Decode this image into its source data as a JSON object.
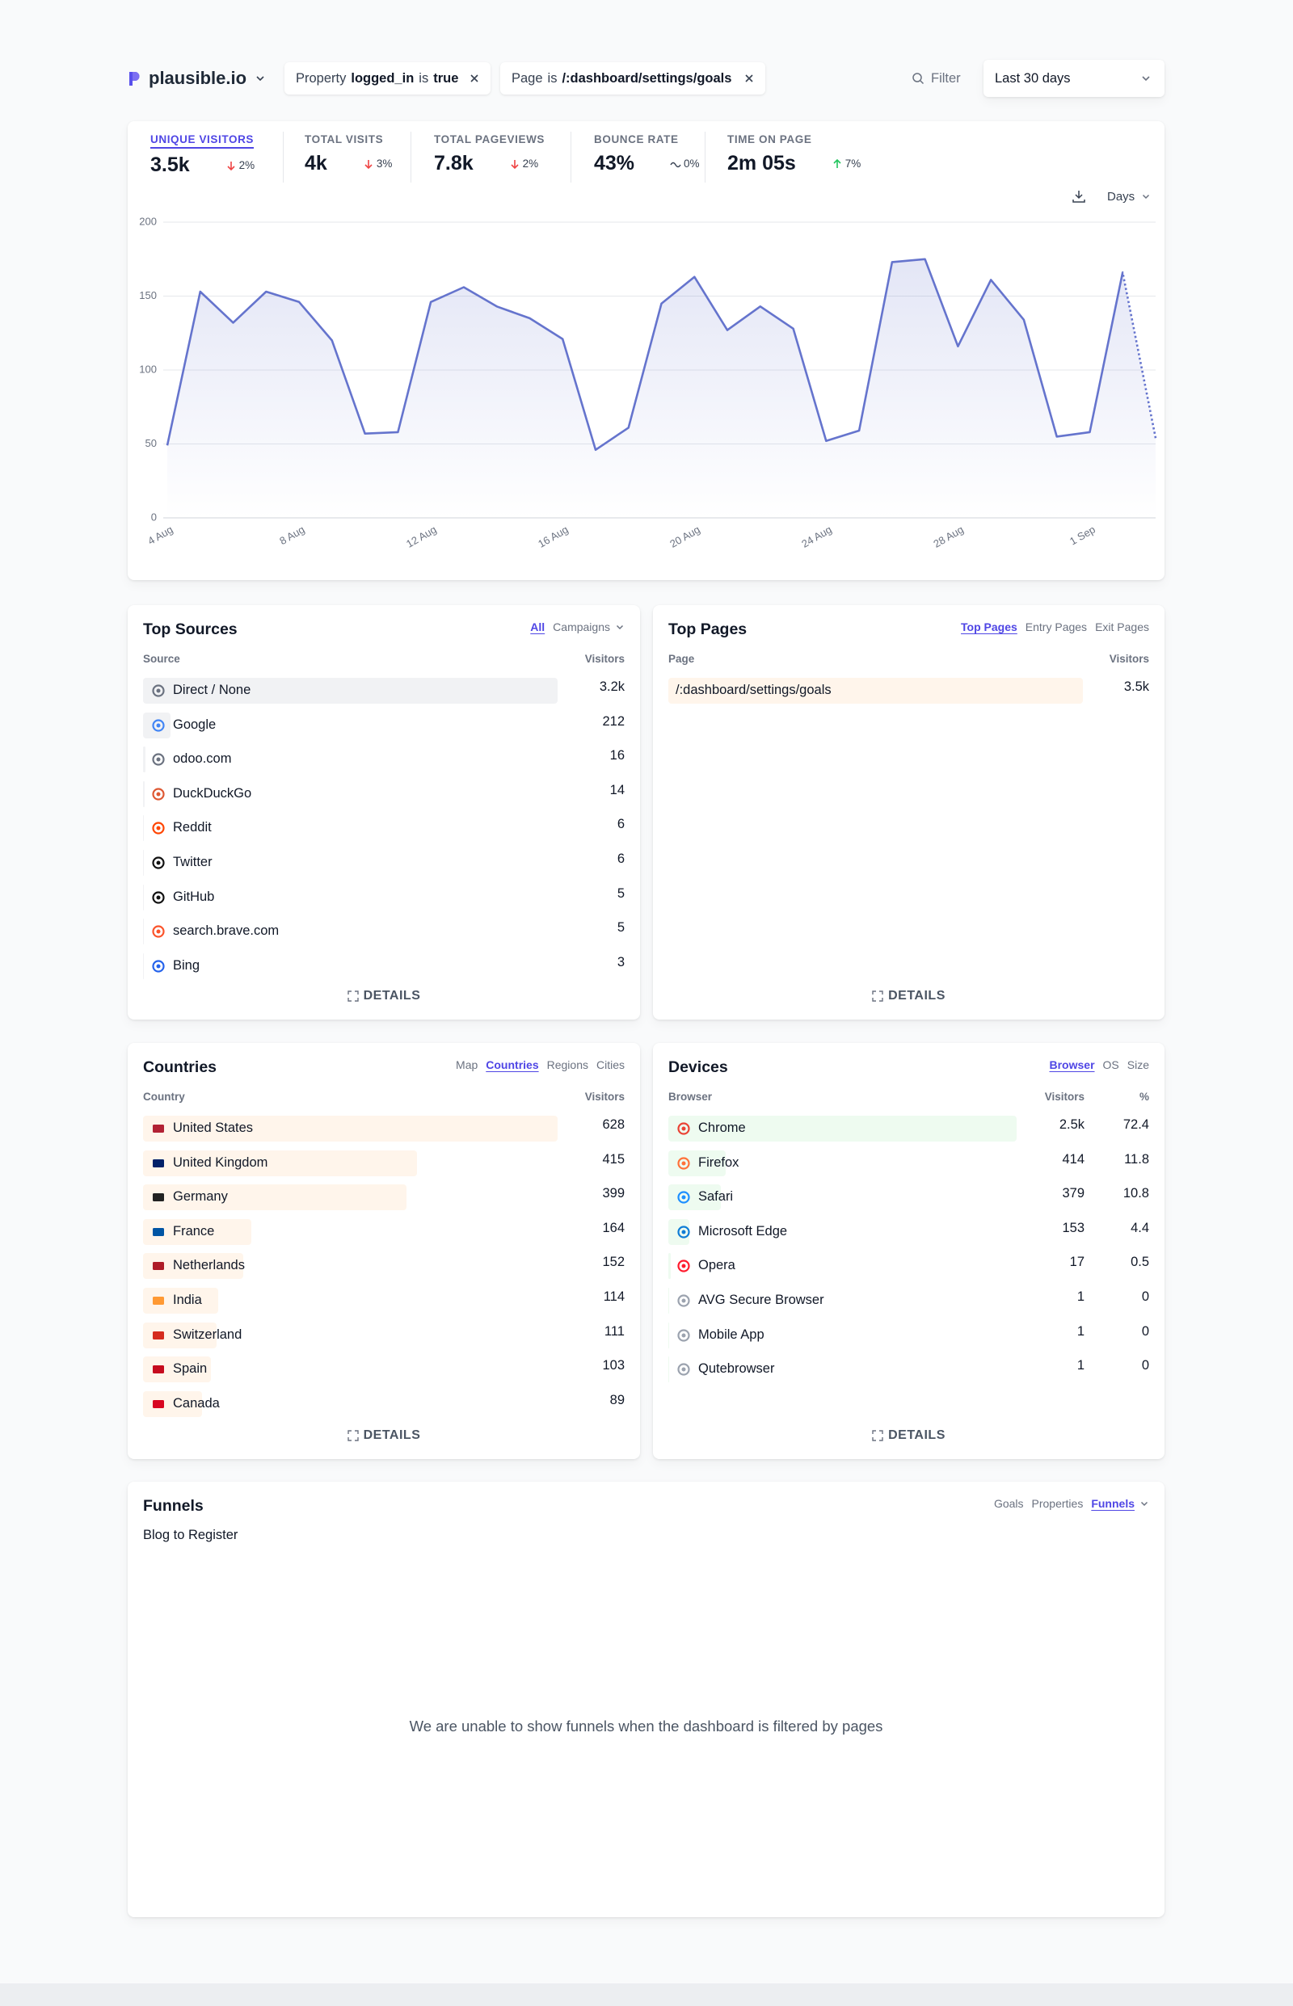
{
  "header": {
    "site": "plausible.io",
    "filters": [
      {
        "label": "Property",
        "key": "logged_in",
        "op": "is",
        "value": "true"
      },
      {
        "label": "Page",
        "op": "is",
        "value": "/:dashboard/settings/goals"
      }
    ],
    "filter_button": "Filter",
    "period": "Last 30 days"
  },
  "top_stats": [
    {
      "label": "UNIQUE VISITORS",
      "value": "3.5k",
      "change": "2%",
      "trend": "down",
      "active": true
    },
    {
      "label": "TOTAL VISITS",
      "value": "4k",
      "change": "3%",
      "trend": "down",
      "active": false
    },
    {
      "label": "TOTAL PAGEVIEWS",
      "value": "7.8k",
      "change": "2%",
      "trend": "down",
      "active": false
    },
    {
      "label": "BOUNCE RATE",
      "value": "43%",
      "change": "0%",
      "trend": "flat",
      "active": false
    },
    {
      "label": "TIME ON PAGE",
      "value": "2m 05s",
      "change": "7%",
      "trend": "up",
      "active": false
    }
  ],
  "chart_data": {
    "type": "line",
    "interval_label": "Days",
    "categories": [
      "4 Aug",
      null,
      null,
      null,
      "8 Aug",
      null,
      null,
      null,
      "12 Aug",
      null,
      null,
      null,
      "16 Aug",
      null,
      null,
      null,
      "20 Aug",
      null,
      null,
      null,
      "24 Aug",
      null,
      null,
      null,
      "28 Aug",
      null,
      null,
      null,
      "1 Sep",
      null,
      null
    ],
    "values": [
      49,
      153,
      132,
      153,
      146,
      120,
      57,
      58,
      146,
      156,
      143,
      135,
      121,
      46,
      61,
      145,
      163,
      127,
      143,
      128,
      52,
      59,
      173,
      175,
      116,
      161,
      134,
      55,
      58,
      166,
      54
    ],
    "ylim": [
      0,
      200
    ],
    "yticks": [
      0,
      50,
      100,
      150,
      200
    ],
    "color": "#6574cd",
    "grid": true,
    "dashed_last": true
  },
  "top_sources": {
    "title": "Top Sources",
    "tabs": [
      "All",
      "Campaigns"
    ],
    "active_tab": 0,
    "columns": [
      "Source",
      "Visitors"
    ],
    "bar_color": "#f1f2f4",
    "rows": [
      {
        "name": "Direct / None",
        "visitors": 3200,
        "visitors_label": "3.2k",
        "icon": "#6b7280"
      },
      {
        "name": "Google",
        "visitors": 212,
        "icon": "#4285f4"
      },
      {
        "name": "odoo.com",
        "visitors": 16,
        "icon": "#6b7280"
      },
      {
        "name": "DuckDuckGo",
        "visitors": 14,
        "icon": "#de5833"
      },
      {
        "name": "Reddit",
        "visitors": 6,
        "icon": "#ff4500"
      },
      {
        "name": "Twitter",
        "visitors": 6,
        "icon": "#111111"
      },
      {
        "name": "GitHub",
        "visitors": 5,
        "icon": "#111111"
      },
      {
        "name": "search.brave.com",
        "visitors": 5,
        "icon": "#fb542b"
      },
      {
        "name": "Bing",
        "visitors": 3,
        "icon": "#2563eb"
      }
    ],
    "details": "DETAILS"
  },
  "top_pages": {
    "title": "Top Pages",
    "tabs": [
      "Top Pages",
      "Entry Pages",
      "Exit Pages"
    ],
    "active_tab": 0,
    "columns": [
      "Page",
      "Visitors"
    ],
    "bar_color": "#fff5eb",
    "rows": [
      {
        "name": "/:dashboard/settings/goals",
        "visitors": 3500,
        "visitors_label": "3.5k"
      }
    ],
    "details": "DETAILS"
  },
  "countries": {
    "title": "Countries",
    "tabs": [
      "Map",
      "Countries",
      "Regions",
      "Cities"
    ],
    "active_tab": 1,
    "columns": [
      "Country",
      "Visitors"
    ],
    "bar_color": "#fff5eb",
    "rows": [
      {
        "name": "United States",
        "visitors": 628,
        "icon": "#b22234"
      },
      {
        "name": "United Kingdom",
        "visitors": 415,
        "icon": "#012169"
      },
      {
        "name": "Germany",
        "visitors": 399,
        "icon": "#222222"
      },
      {
        "name": "France",
        "visitors": 164,
        "icon": "#0055a4"
      },
      {
        "name": "Netherlands",
        "visitors": 152,
        "icon": "#ae1c28"
      },
      {
        "name": "India",
        "visitors": 114,
        "icon": "#ff9933"
      },
      {
        "name": "Switzerland",
        "visitors": 111,
        "icon": "#d52b1e"
      },
      {
        "name": "Spain",
        "visitors": 103,
        "icon": "#c60b1e"
      },
      {
        "name": "Canada",
        "visitors": 89,
        "icon": "#d80621"
      }
    ],
    "details": "DETAILS"
  },
  "devices": {
    "title": "Devices",
    "tabs": [
      "Browser",
      "OS",
      "Size"
    ],
    "active_tab": 0,
    "columns": [
      "Browser",
      "Visitors",
      "%"
    ],
    "bar_color": "#eefbf0",
    "rows": [
      {
        "name": "Chrome",
        "visitors": 2500,
        "visitors_label": "2.5k",
        "pct": 72.4,
        "icon": "#ea4335"
      },
      {
        "name": "Firefox",
        "visitors": 414,
        "pct": 11.8,
        "icon": "#ff7139"
      },
      {
        "name": "Safari",
        "visitors": 379,
        "pct": 10.8,
        "icon": "#1e90ff"
      },
      {
        "name": "Microsoft Edge",
        "visitors": 153,
        "pct": 4.4,
        "icon": "#0f7dd6"
      },
      {
        "name": "Opera",
        "visitors": 17,
        "pct": 0.5,
        "icon": "#ff1b2d"
      },
      {
        "name": "AVG Secure Browser",
        "visitors": 1,
        "pct": 0,
        "icon": "#9ca3af"
      },
      {
        "name": "Mobile App",
        "visitors": 1,
        "pct": 0,
        "icon": "#9ca3af"
      },
      {
        "name": "Qutebrowser",
        "visitors": 1,
        "pct": 0,
        "icon": "#9ca3af"
      }
    ],
    "details": "DETAILS"
  },
  "funnels": {
    "title": "Funnels",
    "tabs": [
      "Goals",
      "Properties",
      "Funnels"
    ],
    "active_tab": 2,
    "funnel": "Blog to Register",
    "message": "We are unable to show funnels when the dashboard is filtered by pages"
  }
}
